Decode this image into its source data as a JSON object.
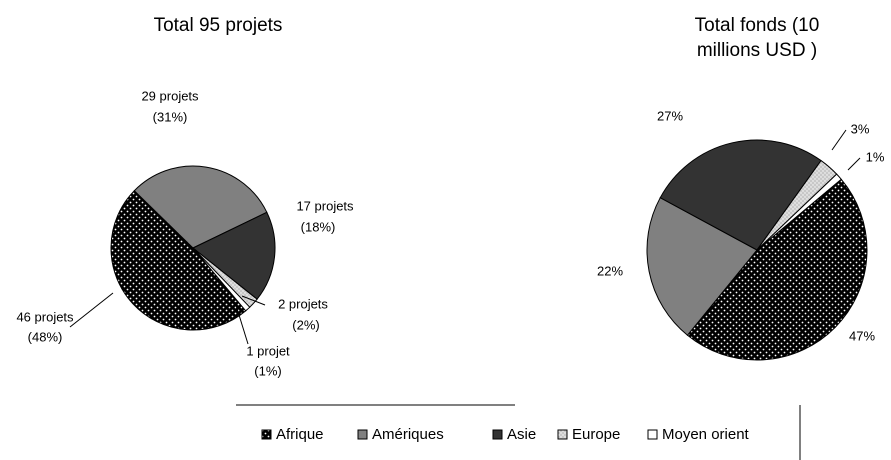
{
  "chart_data": [
    {
      "type": "pie",
      "title": [
        "Total 95 projets"
      ],
      "categories": [
        "Afrique",
        "Amériques",
        "Asie",
        "Europe",
        "Moyen orient"
      ],
      "values": [
        46,
        29,
        17,
        2,
        1
      ],
      "value_labels": [
        [
          "46 projets",
          "(48%)"
        ],
        [
          "29 projets",
          "(31%)"
        ],
        [
          "17 projets",
          "(18%)"
        ],
        [
          "2 projets",
          "(2%)"
        ],
        [
          "1 projet",
          "(1%)"
        ]
      ],
      "colors": [
        "#000000",
        "#808080",
        "#333333",
        "#c0c0c0",
        "#ffffff"
      ],
      "patterns": [
        "dots",
        null,
        null,
        "dots",
        null
      ],
      "legend": "bottom"
    },
    {
      "type": "pie",
      "title": [
        "Total fonds (10",
        "millions USD )"
      ],
      "categories": [
        "Afrique",
        "Amériques",
        "Asie",
        "Europe",
        "Moyen orient"
      ],
      "values": [
        47,
        22,
        27,
        3,
        1
      ],
      "value_labels": [
        [
          "47%"
        ],
        [
          "22%"
        ],
        [
          "27%"
        ],
        [
          "3%"
        ],
        [
          "1%"
        ]
      ],
      "colors": [
        "#000000",
        "#808080",
        "#333333",
        "#c0c0c0",
        "#ffffff"
      ],
      "patterns": [
        "dots",
        null,
        null,
        "dots",
        null
      ],
      "legend": "bottom"
    }
  ]
}
